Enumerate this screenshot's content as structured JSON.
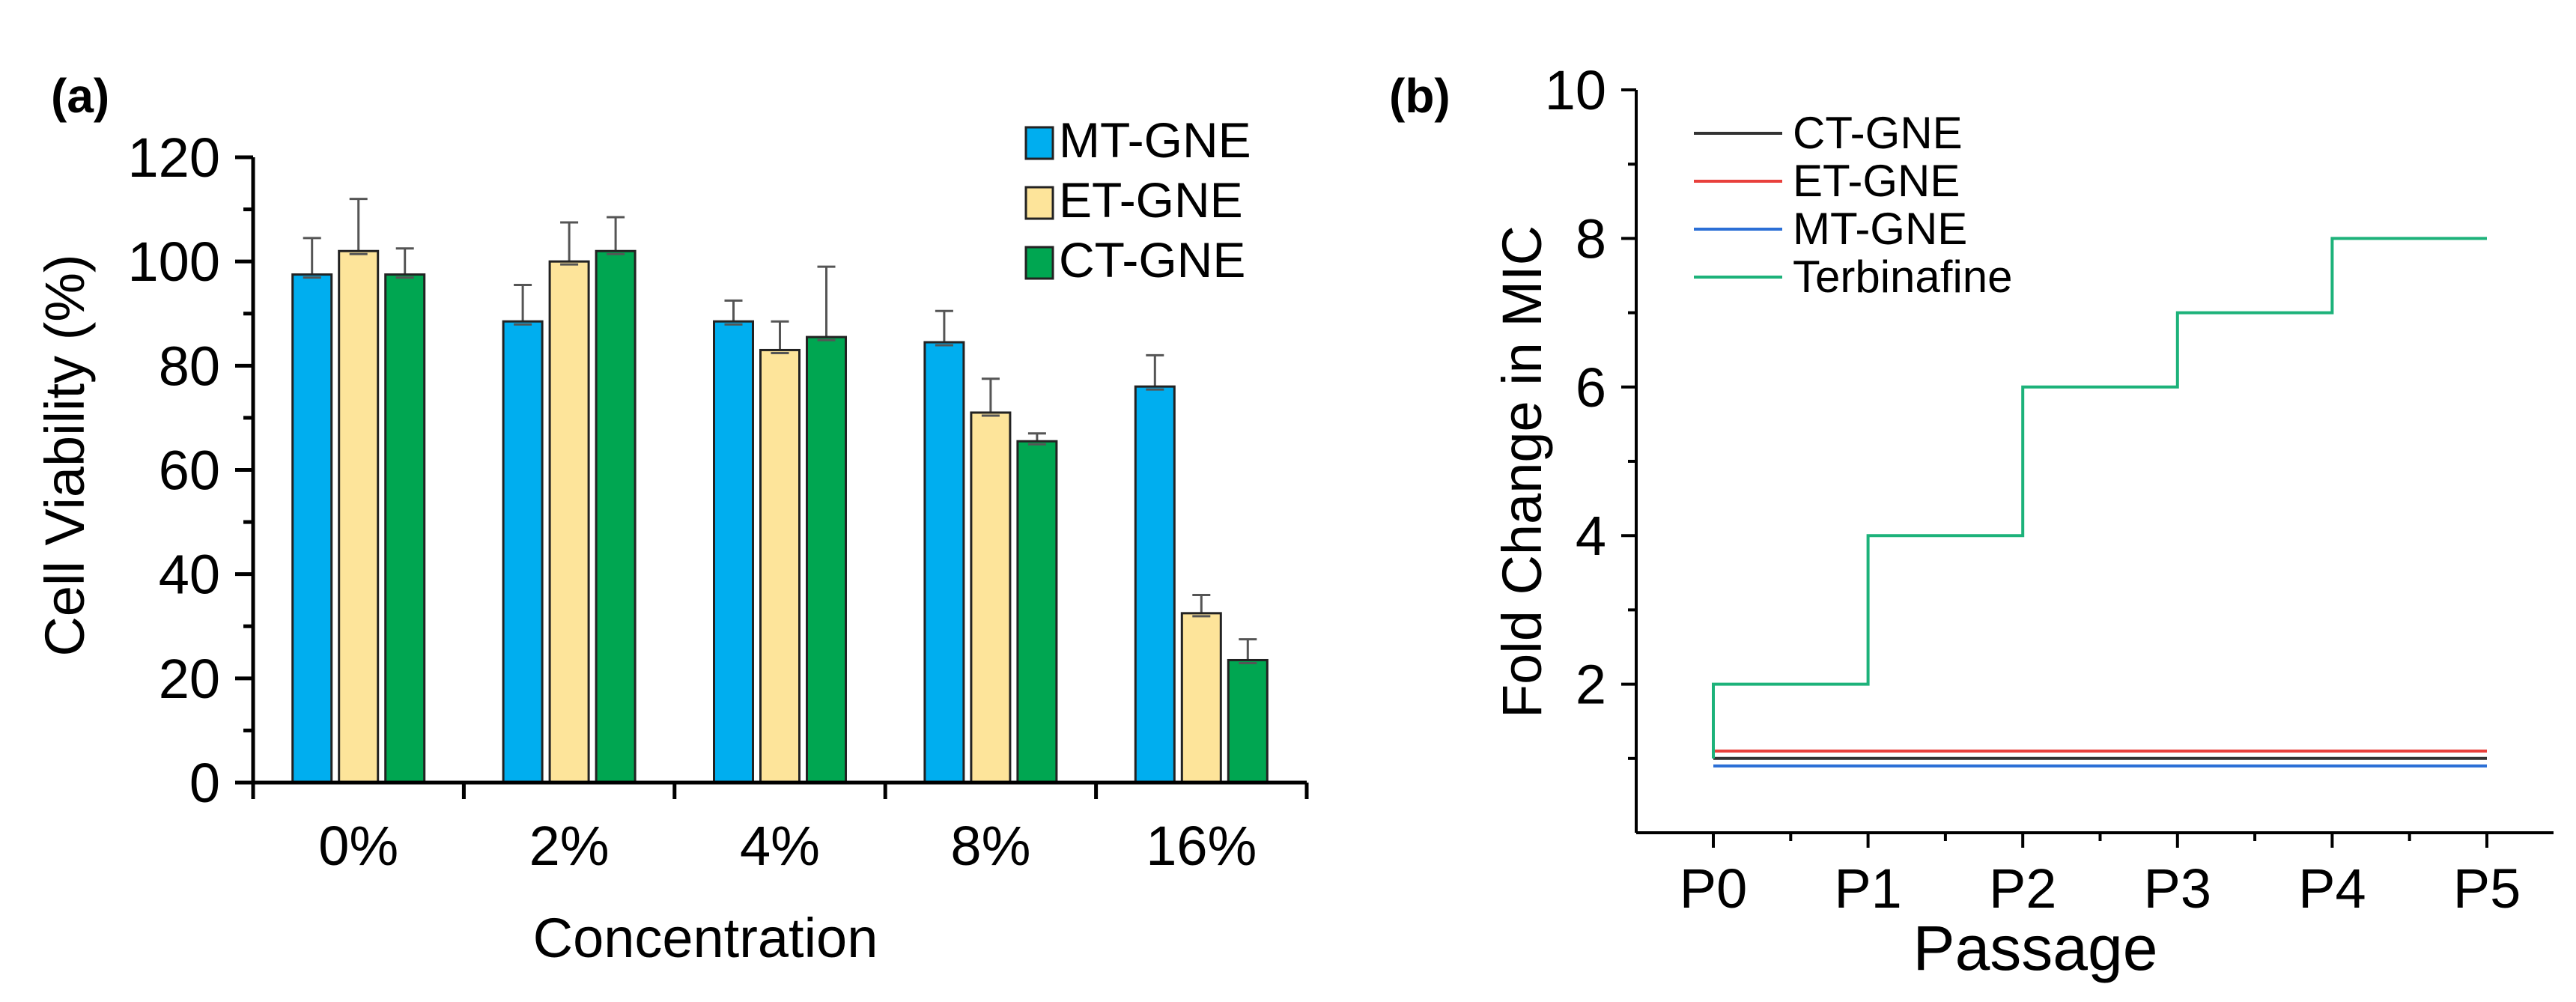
{
  "chart_data": [
    {
      "panel": "(a)",
      "type": "bar",
      "title": "",
      "xlabel": "Concentration",
      "ylabel": "Cell Viability (%)",
      "ylim": [
        0,
        120
      ],
      "yticks": [
        0,
        20,
        40,
        60,
        80,
        100,
        120
      ],
      "categories": [
        "0%",
        "2%",
        "4%",
        "8%",
        "16%"
      ],
      "legend_position": "top-right",
      "series": [
        {
          "name": "MT-GNE",
          "color": "#00AEEF",
          "values": [
            97.5,
            88.5,
            88.5,
            84.5,
            76
          ],
          "errors": [
            7,
            7,
            4,
            6,
            6
          ]
        },
        {
          "name": "ET-GNE",
          "color": "#FDE49A",
          "values": [
            102,
            100,
            83,
            71,
            32.5
          ],
          "errors": [
            10,
            7.5,
            5.5,
            6.5,
            3.5
          ]
        },
        {
          "name": "CT-GNE",
          "color": "#00A651",
          "values": [
            97.5,
            102,
            85.5,
            65.5,
            23.5
          ],
          "errors": [
            5,
            6.5,
            13.5,
            1.5,
            4
          ]
        }
      ]
    },
    {
      "panel": "(b)",
      "type": "line",
      "step": true,
      "title": "",
      "xlabel": "Passage",
      "ylabel": "Fold Change in MIC",
      "ylim": [
        0,
        10
      ],
      "yticks": [
        2,
        4,
        6,
        8,
        10
      ],
      "categories": [
        "P0",
        "P1",
        "P2",
        "P3",
        "P4",
        "P5"
      ],
      "legend_position": "top-left",
      "series": [
        {
          "name": "CT-GNE",
          "color": "#333333",
          "values": [
            1,
            1,
            1,
            1,
            1,
            1
          ]
        },
        {
          "name": "ET-GNE",
          "color": "#E8403C",
          "values": [
            1.1,
            1.1,
            1.1,
            1.1,
            1.1,
            1.1
          ]
        },
        {
          "name": "MT-GNE",
          "color": "#2B6FD6",
          "values": [
            0.9,
            0.9,
            0.9,
            0.9,
            0.9,
            0.9
          ]
        },
        {
          "name": "Terbinafine",
          "color": "#1DB27A",
          "values": [
            2,
            4,
            6,
            7,
            8,
            8
          ]
        }
      ]
    }
  ]
}
